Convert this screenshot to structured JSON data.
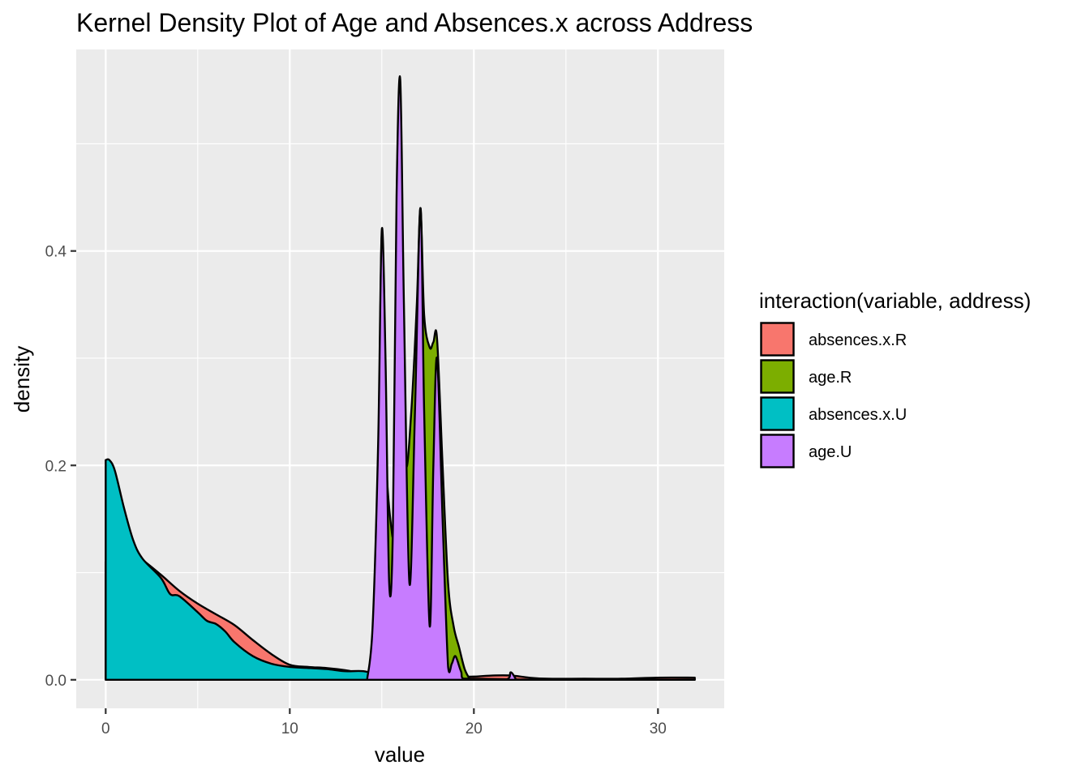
{
  "chart_data": {
    "type": "area",
    "title": "Kernel Density Plot of Age and Absences.x across Address",
    "xlabel": "value",
    "ylabel": "density",
    "xlim": [
      -1.6,
      33.6
    ],
    "ylim": [
      -0.0266,
      0.588
    ],
    "x_ticks": [
      0,
      10,
      20,
      30
    ],
    "x_tick_labels": [
      "0",
      "10",
      "20",
      "30"
    ],
    "y_ticks": [
      0.0,
      0.2,
      0.4
    ],
    "y_tick_labels": [
      "0.0",
      "0.2",
      "0.4"
    ],
    "grid": true,
    "legend_position": "right",
    "legend_title": "interaction(variable, address)",
    "series": [
      {
        "name": "absences.x.R",
        "color": "#F8766D",
        "points": [
          [
            0,
            0.11
          ],
          [
            1,
            0.125
          ],
          [
            2,
            0.112
          ],
          [
            3,
            0.098
          ],
          [
            4,
            0.083
          ],
          [
            5,
            0.071
          ],
          [
            6,
            0.061
          ],
          [
            7,
            0.051
          ],
          [
            8,
            0.037
          ],
          [
            9,
            0.024
          ],
          [
            10,
            0.014
          ],
          [
            11,
            0.012
          ],
          [
            12,
            0.011
          ],
          [
            13,
            0.009
          ],
          [
            14,
            0.006
          ],
          [
            15,
            0.004
          ],
          [
            16,
            0.003
          ],
          [
            17,
            0.003
          ],
          [
            18,
            0.003
          ],
          [
            19,
            0.003
          ],
          [
            20,
            0.003
          ],
          [
            21,
            0.004
          ],
          [
            22,
            0.004
          ],
          [
            23,
            0.002
          ],
          [
            24,
            0.001
          ],
          [
            26,
            0.001
          ],
          [
            28,
            0.001
          ],
          [
            30,
            0.002
          ],
          [
            32,
            0.002
          ]
        ]
      },
      {
        "name": "age.R",
        "color": "#7CAE00",
        "points": [
          [
            14,
            0.0
          ],
          [
            14.5,
            0.015
          ],
          [
            14.8,
            0.18
          ],
          [
            15.0,
            0.415
          ],
          [
            15.2,
            0.22
          ],
          [
            15.5,
            0.144
          ],
          [
            15.7,
            0.15
          ],
          [
            16.0,
            0.31
          ],
          [
            16.3,
            0.2
          ],
          [
            16.6,
            0.25
          ],
          [
            16.9,
            0.35
          ],
          [
            17.1,
            0.44
          ],
          [
            17.3,
            0.34
          ],
          [
            17.6,
            0.31
          ],
          [
            17.8,
            0.315
          ],
          [
            18.0,
            0.318
          ],
          [
            18.3,
            0.2
          ],
          [
            18.6,
            0.09
          ],
          [
            18.9,
            0.05
          ],
          [
            19.2,
            0.03
          ],
          [
            19.5,
            0.01
          ],
          [
            19.8,
            0.0
          ]
        ]
      },
      {
        "name": "absences.x.U",
        "color": "#00BFC4",
        "points": [
          [
            0,
            0.205
          ],
          [
            0.2,
            0.205
          ],
          [
            0.5,
            0.195
          ],
          [
            1,
            0.16
          ],
          [
            1.5,
            0.13
          ],
          [
            2,
            0.113
          ],
          [
            3,
            0.095
          ],
          [
            3.5,
            0.08
          ],
          [
            4,
            0.078
          ],
          [
            5,
            0.063
          ],
          [
            5.5,
            0.055
          ],
          [
            6,
            0.052
          ],
          [
            6.5,
            0.045
          ],
          [
            7,
            0.035
          ],
          [
            8,
            0.022
          ],
          [
            9,
            0.015
          ],
          [
            10,
            0.012
          ],
          [
            11,
            0.011
          ],
          [
            12,
            0.01
          ],
          [
            13,
            0.008
          ],
          [
            14,
            0.008
          ],
          [
            15,
            0.004
          ],
          [
            16,
            0.002
          ],
          [
            18,
            0.001
          ],
          [
            20,
            0.001
          ],
          [
            24,
            0.0
          ],
          [
            28,
            0.0
          ],
          [
            32,
            0.0
          ]
        ]
      },
      {
        "name": "age.U",
        "color": "#C77CFF",
        "points": [
          [
            14.2,
            0.0
          ],
          [
            14.5,
            0.05
          ],
          [
            14.8,
            0.22
          ],
          [
            15.0,
            0.42
          ],
          [
            15.2,
            0.3
          ],
          [
            15.4,
            0.09
          ],
          [
            15.6,
            0.14
          ],
          [
            15.8,
            0.45
          ],
          [
            16.0,
            0.56
          ],
          [
            16.2,
            0.35
          ],
          [
            16.5,
            0.09
          ],
          [
            16.8,
            0.25
          ],
          [
            17.1,
            0.44
          ],
          [
            17.3,
            0.25
          ],
          [
            17.6,
            0.05
          ],
          [
            17.8,
            0.2
          ],
          [
            18.0,
            0.3
          ],
          [
            18.3,
            0.15
          ],
          [
            18.6,
            0.012
          ],
          [
            18.8,
            0.015
          ],
          [
            19.0,
            0.022
          ],
          [
            19.3,
            0.008
          ],
          [
            19.6,
            0.0
          ],
          [
            21.7,
            0.0
          ],
          [
            22.0,
            0.007
          ],
          [
            22.3,
            0.0
          ]
        ]
      }
    ]
  }
}
